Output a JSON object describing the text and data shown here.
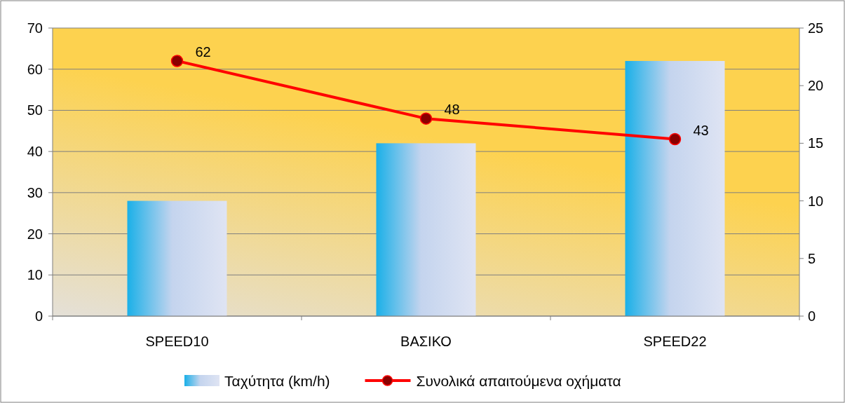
{
  "chart_data": {
    "type": "bar",
    "categories": [
      "SPEED10",
      "ΒΑΣΙΚΟ",
      "SPEED22"
    ],
    "series": [
      {
        "name": "Ταχύτητα (km/h)",
        "color": "#1ab0e8",
        "values": [
          28,
          42,
          62
        ]
      },
      {
        "name": "Συνολικά απαιτούμενα οχήματα",
        "type": "line",
        "color": "#ff0000",
        "values": [
          62,
          48,
          43
        ],
        "value_labels": [
          "62",
          "48",
          "43"
        ]
      }
    ],
    "ylim": [
      0,
      70
    ],
    "yticks": [
      0,
      10,
      20,
      30,
      40,
      50,
      60,
      70
    ],
    "y2lim": [
      0,
      25
    ],
    "y2ticks": [
      0,
      5,
      10,
      15,
      20,
      25
    ],
    "grid": "y",
    "legend": "bottom",
    "marker": "circle"
  }
}
